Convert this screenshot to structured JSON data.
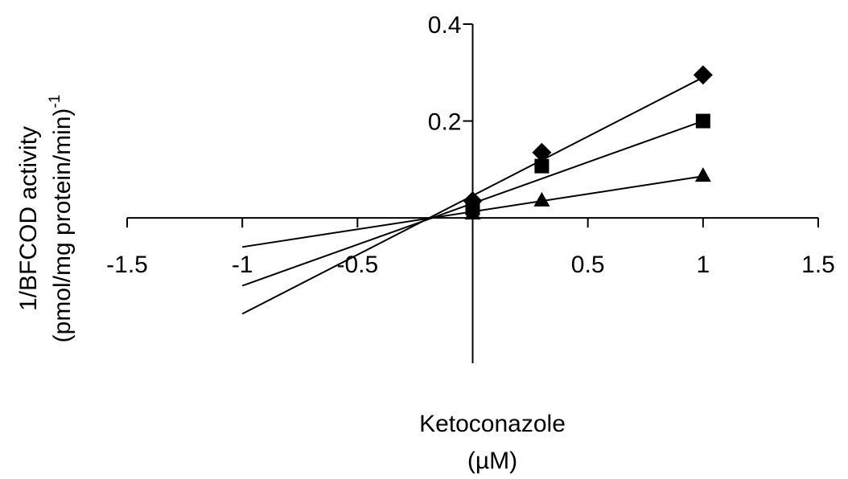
{
  "chart_data": {
    "type": "scatter",
    "ylabel_line1": "1/BFCOD activity",
    "ylabel_line2_prefix": "(pmol/mg protein/min)",
    "ylabel_line2_sup": "-1",
    "xlabel_line1": "Ketoconazole",
    "xlabel_line2": "(µM)",
    "xlim": [
      -1.5,
      1.5
    ],
    "ylim": [
      -0.3,
      0.4
    ],
    "x_ticks": [
      -1.5,
      -1,
      -0.5,
      0.5,
      1,
      1.5
    ],
    "x_tick_labels": [
      "-1.5",
      "-1",
      "-0.5",
      "0.5",
      "1",
      "1.5"
    ],
    "y_ticks": [
      0.2,
      0.4
    ],
    "y_tick_labels": [
      "0.2",
      "0.4"
    ],
    "grid": false,
    "legend": "none",
    "series": [
      {
        "marker": "diamond",
        "points": [
          [
            0,
            0.035
          ],
          [
            0.3,
            0.135
          ],
          [
            1,
            0.295
          ]
        ],
        "fit_line": [
          [
            -1,
            -0.198
          ],
          [
            1,
            0.29
          ]
        ]
      },
      {
        "marker": "square",
        "points": [
          [
            0,
            0.02
          ],
          [
            0.3,
            0.107
          ],
          [
            1,
            0.2
          ]
        ],
        "fit_line": [
          [
            -1,
            -0.14
          ],
          [
            1,
            0.2
          ]
        ]
      },
      {
        "marker": "triangle",
        "points": [
          [
            0,
            0.01
          ],
          [
            0.3,
            0.037
          ],
          [
            1,
            0.088
          ]
        ],
        "fit_line": [
          [
            -1,
            -0.06
          ],
          [
            1,
            0.086
          ]
        ]
      }
    ]
  }
}
